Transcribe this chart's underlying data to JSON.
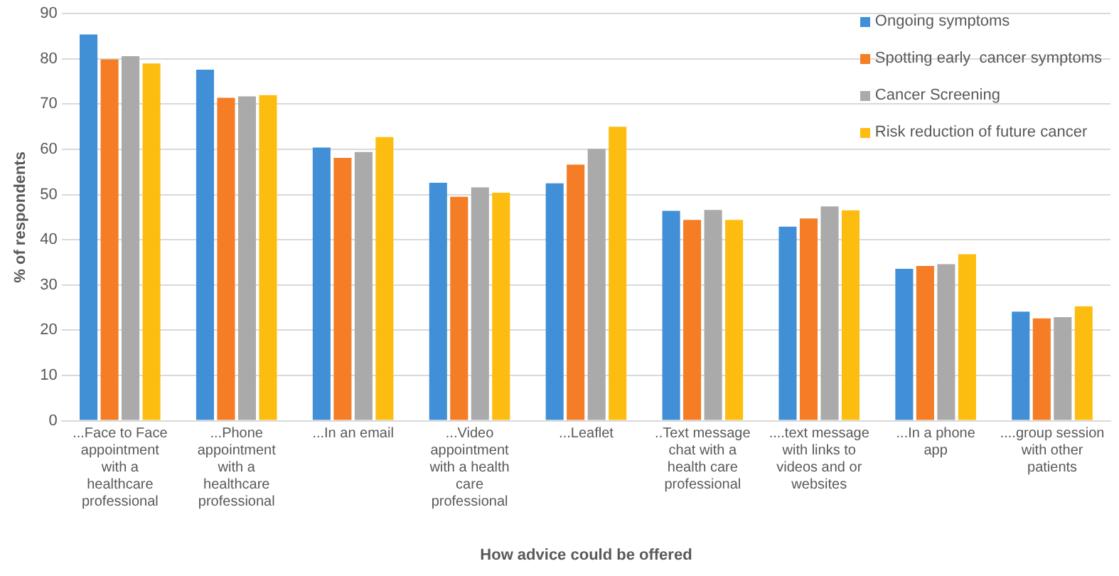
{
  "chart_data": {
    "type": "bar",
    "xlabel": "How advice could be offered",
    "ylabel": "% of respondents",
    "categories": [
      "...Face to Face appointment with a healthcare professional",
      "...Phone appointment with a healthcare professional",
      "...In an email",
      "...Video appointment with a health care professional",
      "...Leaflet",
      "..Text message chat with a health care professional",
      "....text message with links to videos and or websites",
      "...In a phone app",
      "....group session with other patients"
    ],
    "series": [
      {
        "name": "Ongoing symptoms",
        "color": "#418fd6",
        "values": [
          85.4,
          77.6,
          60.4,
          52.6,
          52.5,
          46.4,
          42.9,
          33.6,
          24.1
        ]
      },
      {
        "name": "Spotting early  cancer symptoms",
        "color": "#f47d25",
        "values": [
          79.9,
          71.4,
          58.1,
          49.5,
          56.6,
          44.4,
          44.7,
          34.2,
          22.6
        ]
      },
      {
        "name": "Cancer Screening",
        "color": "#aaaaaa",
        "values": [
          80.6,
          71.7,
          59.4,
          51.6,
          60.1,
          46.6,
          47.4,
          34.6,
          22.9
        ]
      },
      {
        "name": "Risk reduction of future cancer",
        "color": "#fdbd10",
        "values": [
          79.0,
          72.0,
          62.7,
          50.4,
          65.0,
          44.4,
          46.5,
          36.8,
          25.3
        ]
      }
    ],
    "ylim": [
      0,
      90
    ],
    "yticks": [
      0,
      10,
      20,
      30,
      40,
      50,
      60,
      70,
      80,
      90
    ],
    "grid": "y",
    "legend": "top right"
  }
}
